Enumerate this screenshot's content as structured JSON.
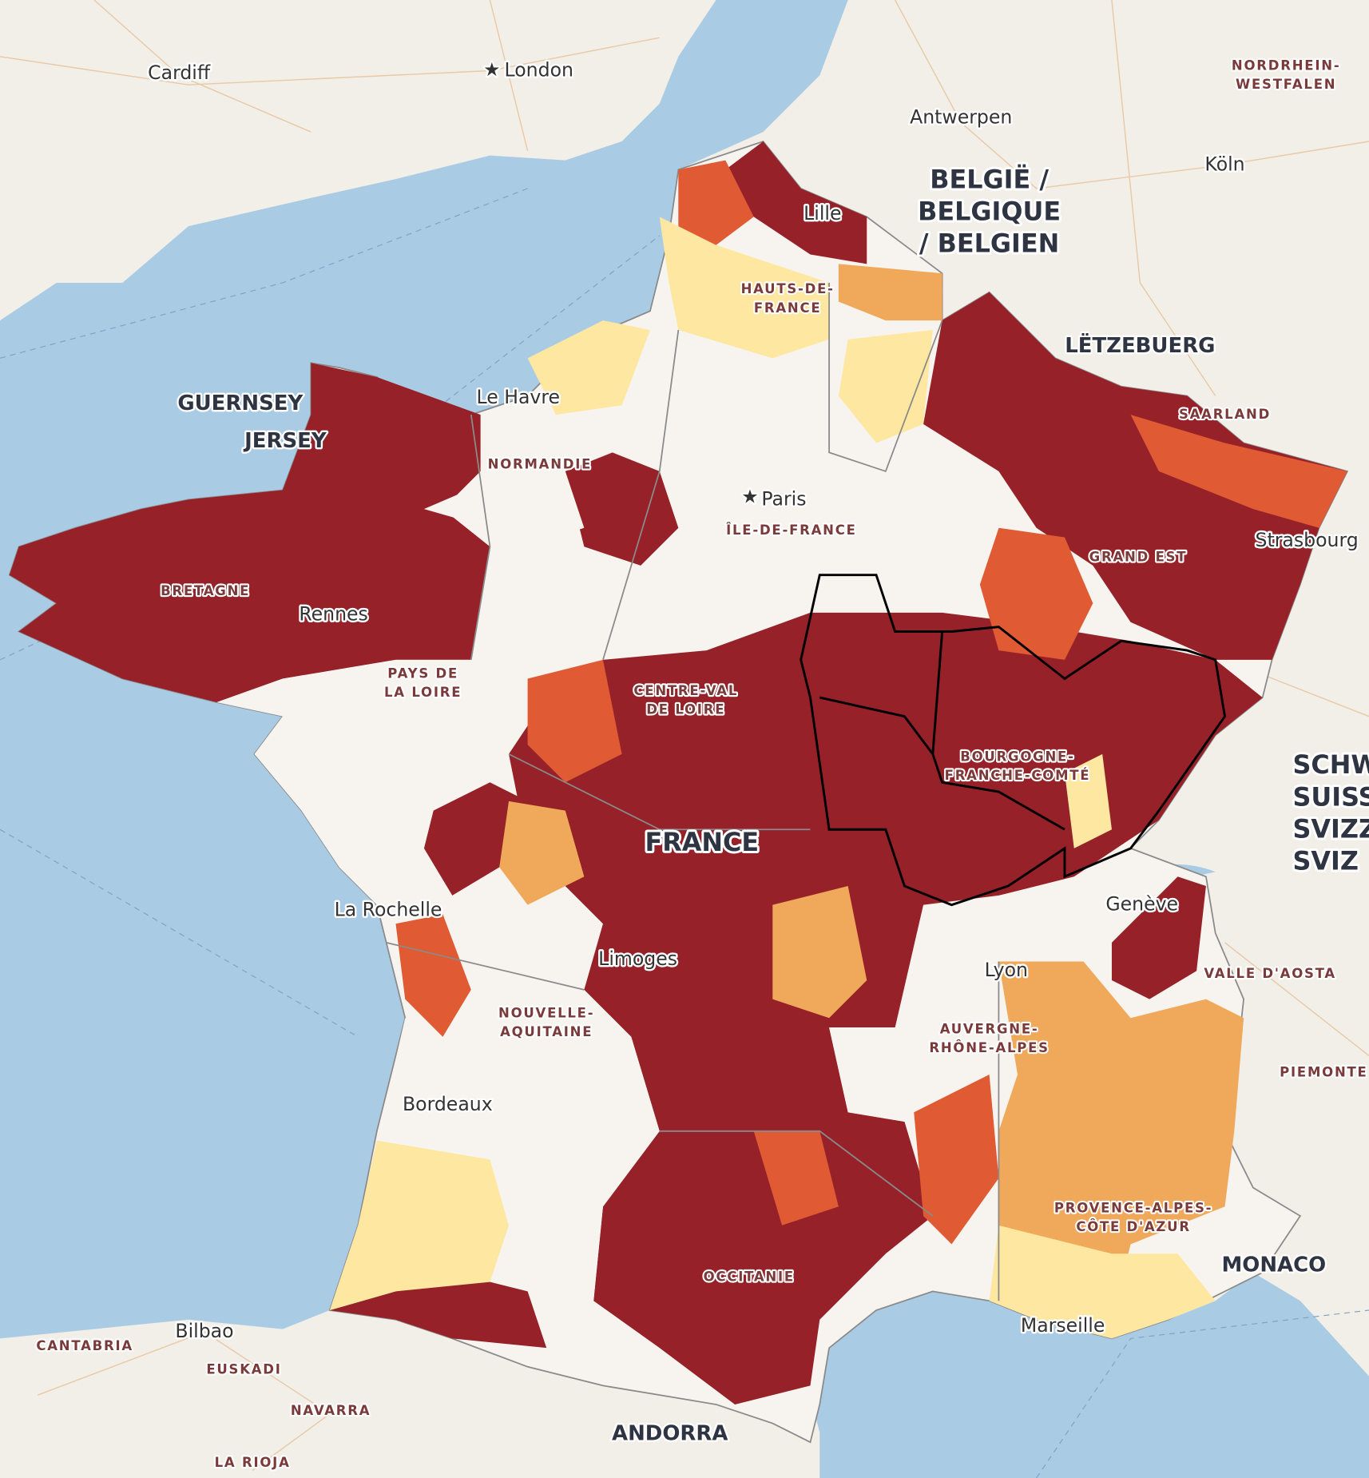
{
  "places": [
    {
      "lines": [
        "Cardiff"
      ]
    },
    {
      "lines": [
        "London"
      ]
    },
    {
      "lines": [
        "Antwerpen"
      ]
    },
    {
      "lines": [
        "NORDRHEIN-",
        "WESTFALEN"
      ]
    },
    {
      "lines": [
        "Köln"
      ]
    },
    {
      "lines": [
        "BELGIË /",
        "BELGIQUE",
        "/ BELGIEN"
      ]
    },
    {
      "lines": [
        "Lille"
      ]
    },
    {
      "lines": [
        "HAUTS-DE-",
        "FRANCE"
      ]
    },
    {
      "lines": [
        "LËTZEBUERG"
      ]
    },
    {
      "lines": [
        "GUERNSEY"
      ]
    },
    {
      "lines": [
        "JERSEY"
      ]
    },
    {
      "lines": [
        "Le Havre"
      ]
    },
    {
      "lines": [
        "NORMANDIE"
      ]
    },
    {
      "lines": [
        "SAARLAND"
      ]
    },
    {
      "lines": [
        "Paris"
      ]
    },
    {
      "lines": [
        "ÎLE-DE-FRANCE"
      ]
    },
    {
      "lines": [
        "Strasbourg"
      ]
    },
    {
      "lines": [
        "GRAND EST"
      ]
    },
    {
      "lines": [
        "BRETAGNE"
      ]
    },
    {
      "lines": [
        "Rennes"
      ]
    },
    {
      "lines": [
        "PAYS DE",
        "LA LOIRE"
      ]
    },
    {
      "lines": [
        "CENTRE-VAL",
        "DE LOIRE"
      ]
    },
    {
      "lines": [
        "BOURGOGNE-",
        "FRANCHE-COMTÉ"
      ]
    },
    {
      "lines": [
        "SCHW",
        "SUISS",
        "SVIZZ",
        "SVIZ"
      ]
    },
    {
      "lines": [
        "FRANCE"
      ]
    },
    {
      "lines": [
        "La Rochelle"
      ]
    },
    {
      "lines": [
        "Genève"
      ]
    },
    {
      "lines": [
        "Limoges"
      ]
    },
    {
      "lines": [
        "Lyon"
      ]
    },
    {
      "lines": [
        "VALLE D'AOSTA"
      ]
    },
    {
      "lines": [
        "NOUVELLE-",
        "AQUITAINE"
      ]
    },
    {
      "lines": [
        "AUVERGNE-",
        "RHÔNE-ALPES"
      ]
    },
    {
      "lines": [
        "PIEMONTE"
      ]
    },
    {
      "lines": [
        "Bordeaux"
      ]
    },
    {
      "lines": [
        "PROVENCE-ALPES-",
        "CÔTE D'AZUR"
      ]
    },
    {
      "lines": [
        "MONACO"
      ]
    },
    {
      "lines": [
        "OCCITANIE"
      ]
    },
    {
      "lines": [
        "CANTABRIA"
      ]
    },
    {
      "lines": [
        "Bilbao"
      ]
    },
    {
      "lines": [
        "EUSKADI"
      ]
    },
    {
      "lines": [
        "Marseille"
      ]
    },
    {
      "lines": [
        "NAVARRA"
      ]
    },
    {
      "lines": [
        "ANDORRA"
      ]
    },
    {
      "lines": [
        "LA RIOJA"
      ]
    }
  ]
}
